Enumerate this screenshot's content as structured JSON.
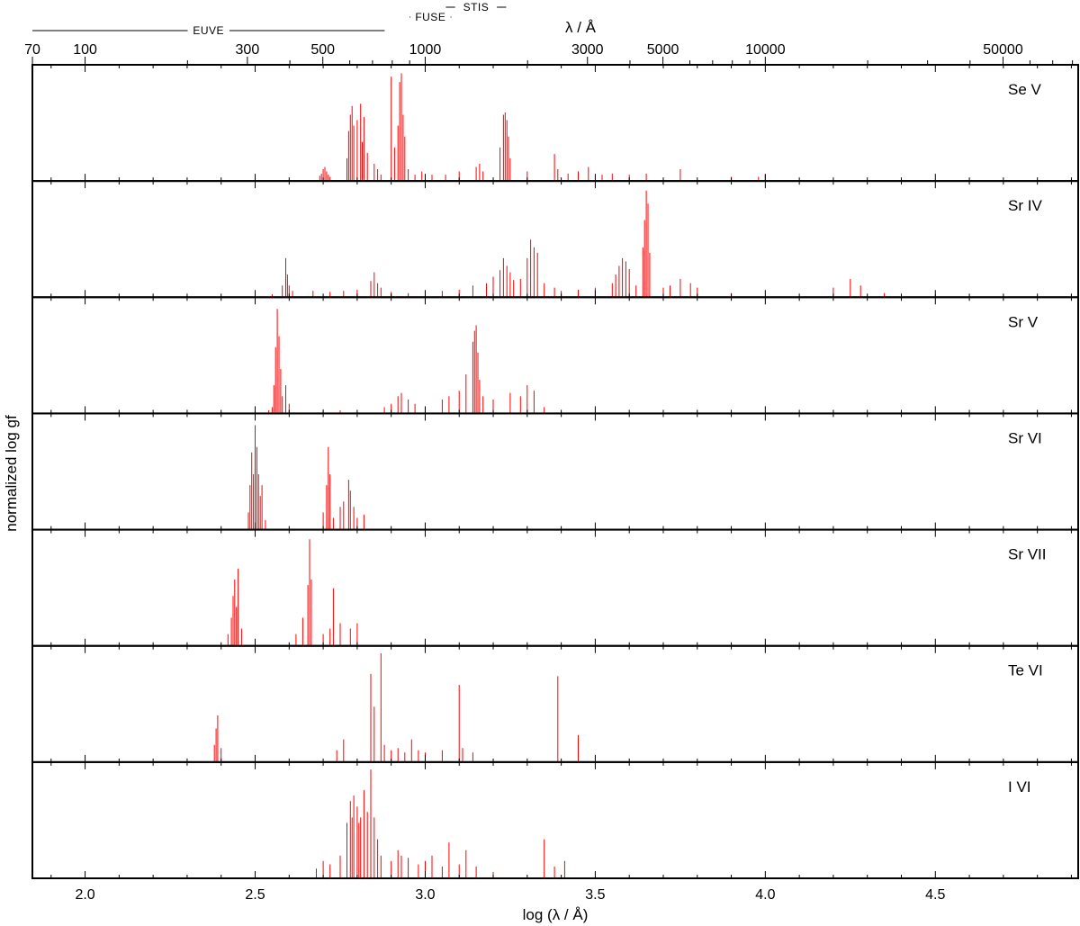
{
  "chart_data": {
    "type": "bar",
    "xlabel": "log (λ / Å)",
    "xlabel_top": "λ / Å",
    "ylabel": "normalized log gf",
    "xlim": [
      1.845,
      4.92
    ],
    "ylim": [
      0,
      1
    ],
    "grid": false,
    "bottom_ticks": [
      "2.0",
      "2.5",
      "3.0",
      "3.5",
      "4.0",
      "4.5"
    ],
    "bottom_minor_step": 0.1,
    "top_ticks": [
      "70",
      "100",
      "300",
      "500",
      "1000",
      "3000",
      "5000",
      "10000",
      "50000"
    ],
    "top_minor_ticks": [
      200,
      400,
      600,
      700,
      800,
      900,
      2000,
      4000,
      6000,
      7000,
      8000,
      9000,
      20000,
      30000,
      40000,
      60000,
      70000,
      80000
    ],
    "instrument_ranges": [
      {
        "name": "EUVE",
        "range": [
          70,
          760
        ],
        "row": "low"
      },
      {
        "name": "FUSE",
        "range": [
          905,
          1187
        ],
        "row": "mid"
      },
      {
        "name": "STIS",
        "range": [
          1150,
          1730
        ],
        "row": "high"
      }
    ],
    "series": [
      {
        "name": "Se V",
        "lines": [
          [
            2.69,
            0.04
          ],
          [
            2.695,
            0.06
          ],
          [
            2.7,
            0.1
          ],
          [
            2.705,
            0.12
          ],
          [
            2.71,
            0.08
          ],
          [
            2.715,
            0.05
          ],
          [
            2.72,
            0.03
          ],
          [
            2.77,
            0.2
          ],
          [
            2.775,
            0.45
          ],
          [
            2.78,
            0.6
          ],
          [
            2.785,
            0.68
          ],
          [
            2.79,
            0.5
          ],
          [
            2.8,
            0.55
          ],
          [
            2.81,
            0.7
          ],
          [
            2.815,
            0.35
          ],
          [
            2.82,
            0.58
          ],
          [
            2.83,
            0.25
          ],
          [
            2.85,
            0.15
          ],
          [
            2.86,
            0.1
          ],
          [
            2.87,
            0.05
          ],
          [
            2.9,
            0.95
          ],
          [
            2.91,
            0.3
          ],
          [
            2.92,
            0.5
          ],
          [
            2.925,
            0.9
          ],
          [
            2.93,
            0.98
          ],
          [
            2.935,
            0.6
          ],
          [
            2.94,
            0.4
          ],
          [
            2.95,
            0.1
          ],
          [
            2.97,
            0.05
          ],
          [
            2.99,
            0.08
          ],
          [
            3.02,
            0.05
          ],
          [
            3.06,
            0.05
          ],
          [
            3.1,
            0.08
          ],
          [
            3.15,
            0.12
          ],
          [
            3.16,
            0.15
          ],
          [
            3.17,
            0.08
          ],
          [
            3.22,
            0.3
          ],
          [
            3.23,
            0.6
          ],
          [
            3.235,
            0.62
          ],
          [
            3.24,
            0.55
          ],
          [
            3.245,
            0.4
          ],
          [
            3.25,
            0.2
          ],
          [
            3.3,
            0.08
          ],
          [
            3.38,
            0.24
          ],
          [
            3.39,
            0.1
          ],
          [
            3.42,
            0.06
          ],
          [
            3.45,
            0.08
          ],
          [
            3.48,
            0.12
          ],
          [
            3.52,
            0.05
          ],
          [
            3.55,
            0.06
          ],
          [
            3.6,
            0.05
          ],
          [
            3.65,
            0.06
          ],
          [
            3.75,
            0.1
          ],
          [
            3.9,
            0.03
          ],
          [
            3.98,
            0.03
          ],
          [
            4.0,
            0.05
          ]
        ]
      },
      {
        "name": "Sr IV",
        "lines": [
          [
            2.55,
            0.02
          ],
          [
            2.58,
            0.1
          ],
          [
            2.59,
            0.35
          ],
          [
            2.595,
            0.2
          ],
          [
            2.6,
            0.1
          ],
          [
            2.61,
            0.05
          ],
          [
            2.67,
            0.05
          ],
          [
            2.72,
            0.04
          ],
          [
            2.76,
            0.05
          ],
          [
            2.8,
            0.06
          ],
          [
            2.84,
            0.14
          ],
          [
            2.85,
            0.22
          ],
          [
            2.86,
            0.12
          ],
          [
            2.87,
            0.08
          ],
          [
            2.9,
            0.04
          ],
          [
            2.95,
            0.03
          ],
          [
            3.0,
            0.04
          ],
          [
            3.05,
            0.05
          ],
          [
            3.1,
            0.06
          ],
          [
            3.14,
            0.1
          ],
          [
            3.18,
            0.12
          ],
          [
            3.2,
            0.18
          ],
          [
            3.22,
            0.24
          ],
          [
            3.23,
            0.35
          ],
          [
            3.24,
            0.28
          ],
          [
            3.25,
            0.22
          ],
          [
            3.26,
            0.15
          ],
          [
            3.28,
            0.16
          ],
          [
            3.3,
            0.35
          ],
          [
            3.31,
            0.52
          ],
          [
            3.32,
            0.45
          ],
          [
            3.33,
            0.4
          ],
          [
            3.35,
            0.12
          ],
          [
            3.38,
            0.08
          ],
          [
            3.4,
            0.05
          ],
          [
            3.45,
            0.06
          ],
          [
            3.5,
            0.08
          ],
          [
            3.55,
            0.12
          ],
          [
            3.56,
            0.2
          ],
          [
            3.57,
            0.28
          ],
          [
            3.58,
            0.35
          ],
          [
            3.59,
            0.32
          ],
          [
            3.6,
            0.25
          ],
          [
            3.62,
            0.1
          ],
          [
            3.64,
            0.45
          ],
          [
            3.645,
            0.7
          ],
          [
            3.65,
            0.97
          ],
          [
            3.655,
            0.85
          ],
          [
            3.66,
            0.4
          ],
          [
            3.7,
            0.08
          ],
          [
            3.72,
            0.1
          ],
          [
            3.75,
            0.16
          ],
          [
            3.78,
            0.12
          ],
          [
            3.8,
            0.08
          ],
          [
            3.9,
            0.03
          ],
          [
            4.2,
            0.08
          ],
          [
            4.25,
            0.16
          ],
          [
            4.28,
            0.1
          ],
          [
            4.35,
            0.03
          ],
          [
            4.5,
            0.02
          ],
          [
            4.9,
            0.02
          ]
        ]
      },
      {
        "name": "Sr V",
        "lines": [
          [
            2.54,
            0.02
          ],
          [
            2.55,
            0.05
          ],
          [
            2.555,
            0.25
          ],
          [
            2.56,
            0.6
          ],
          [
            2.565,
            0.95
          ],
          [
            2.57,
            0.7
          ],
          [
            2.575,
            0.4
          ],
          [
            2.58,
            0.15
          ],
          [
            2.59,
            0.25
          ],
          [
            2.6,
            0.08
          ],
          [
            2.7,
            0.03
          ],
          [
            2.75,
            0.02
          ],
          [
            2.88,
            0.05
          ],
          [
            2.9,
            0.08
          ],
          [
            2.92,
            0.15
          ],
          [
            2.93,
            0.18
          ],
          [
            2.95,
            0.12
          ],
          [
            2.97,
            0.08
          ],
          [
            3.0,
            0.05
          ],
          [
            3.05,
            0.12
          ],
          [
            3.07,
            0.15
          ],
          [
            3.1,
            0.2
          ],
          [
            3.12,
            0.35
          ],
          [
            3.14,
            0.65
          ],
          [
            3.145,
            0.75
          ],
          [
            3.15,
            0.8
          ],
          [
            3.155,
            0.55
          ],
          [
            3.16,
            0.3
          ],
          [
            3.17,
            0.15
          ],
          [
            3.2,
            0.12
          ],
          [
            3.25,
            0.18
          ],
          [
            3.28,
            0.15
          ],
          [
            3.3,
            0.25
          ],
          [
            3.32,
            0.2
          ],
          [
            3.35,
            0.05
          ]
        ]
      },
      {
        "name": "Sr VI",
        "lines": [
          [
            2.48,
            0.15
          ],
          [
            2.485,
            0.4
          ],
          [
            2.49,
            0.7
          ],
          [
            2.495,
            0.5
          ],
          [
            2.5,
            0.95
          ],
          [
            2.505,
            0.75
          ],
          [
            2.51,
            0.5
          ],
          [
            2.515,
            0.3
          ],
          [
            2.52,
            0.4
          ],
          [
            2.53,
            0.08
          ],
          [
            2.7,
            0.15
          ],
          [
            2.71,
            0.4
          ],
          [
            2.715,
            0.75
          ],
          [
            2.72,
            0.5
          ],
          [
            2.73,
            0.1
          ],
          [
            2.75,
            0.2
          ],
          [
            2.76,
            0.25
          ],
          [
            2.775,
            0.45
          ],
          [
            2.78,
            0.35
          ],
          [
            2.79,
            0.2
          ],
          [
            2.8,
            0.1
          ],
          [
            2.82,
            0.13
          ]
        ]
      },
      {
        "name": "Sr VII",
        "lines": [
          [
            2.42,
            0.1
          ],
          [
            2.43,
            0.25
          ],
          [
            2.435,
            0.45
          ],
          [
            2.44,
            0.6
          ],
          [
            2.445,
            0.35
          ],
          [
            2.45,
            0.7
          ],
          [
            2.46,
            0.15
          ],
          [
            2.62,
            0.1
          ],
          [
            2.64,
            0.25
          ],
          [
            2.655,
            0.55
          ],
          [
            2.66,
            0.97
          ],
          [
            2.665,
            0.6
          ],
          [
            2.7,
            0.1
          ],
          [
            2.72,
            0.15
          ],
          [
            2.73,
            0.52
          ],
          [
            2.75,
            0.2
          ],
          [
            2.78,
            0.15
          ],
          [
            2.8,
            0.2
          ]
        ]
      },
      {
        "name": "Te VI",
        "lines": [
          [
            2.38,
            0.15
          ],
          [
            2.385,
            0.3
          ],
          [
            2.39,
            0.42
          ],
          [
            2.4,
            0.12
          ],
          [
            2.74,
            0.1
          ],
          [
            2.76,
            0.2
          ],
          [
            2.84,
            0.8
          ],
          [
            2.85,
            0.5
          ],
          [
            2.87,
            0.99
          ],
          [
            2.88,
            0.15
          ],
          [
            2.9,
            0.1
          ],
          [
            2.92,
            0.12
          ],
          [
            2.94,
            0.08
          ],
          [
            2.96,
            0.2
          ],
          [
            2.98,
            0.1
          ],
          [
            3.0,
            0.08
          ],
          [
            3.05,
            0.1
          ],
          [
            3.1,
            0.7
          ],
          [
            3.11,
            0.12
          ],
          [
            3.14,
            0.08
          ],
          [
            3.39,
            0.78
          ],
          [
            3.45,
            0.24
          ]
        ]
      },
      {
        "name": "I  VI",
        "lines": [
          [
            2.68,
            0.08
          ],
          [
            2.7,
            0.15
          ],
          [
            2.72,
            0.12
          ],
          [
            2.75,
            0.2
          ],
          [
            2.77,
            0.5
          ],
          [
            2.78,
            0.7
          ],
          [
            2.785,
            0.55
          ],
          [
            2.79,
            0.75
          ],
          [
            2.8,
            0.65
          ],
          [
            2.805,
            0.5
          ],
          [
            2.81,
            0.55
          ],
          [
            2.82,
            0.8
          ],
          [
            2.83,
            0.6
          ],
          [
            2.84,
            0.99
          ],
          [
            2.85,
            0.55
          ],
          [
            2.86,
            0.35
          ],
          [
            2.87,
            0.2
          ],
          [
            2.9,
            0.15
          ],
          [
            2.92,
            0.25
          ],
          [
            2.93,
            0.2
          ],
          [
            2.95,
            0.18
          ],
          [
            2.98,
            0.12
          ],
          [
            3.0,
            0.15
          ],
          [
            3.02,
            0.2
          ],
          [
            3.05,
            0.1
          ],
          [
            3.07,
            0.32
          ],
          [
            3.1,
            0.12
          ],
          [
            3.12,
            0.25
          ],
          [
            3.15,
            0.1
          ],
          [
            3.2,
            0.05
          ],
          [
            3.35,
            0.35
          ],
          [
            3.38,
            0.1
          ],
          [
            3.41,
            0.15
          ]
        ]
      }
    ]
  }
}
